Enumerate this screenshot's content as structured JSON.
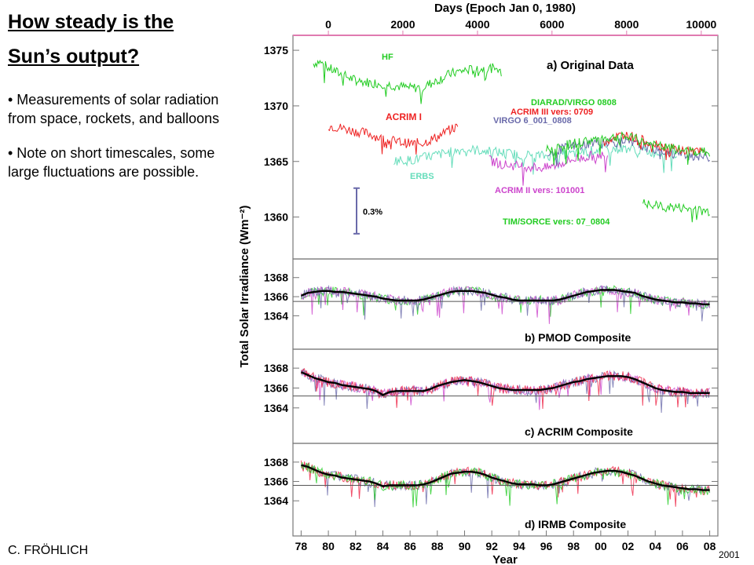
{
  "slide": {
    "title_line1": "How steady is the",
    "title_line2": "Sun’s output?",
    "bullets": [
      "• Measurements of solar radiation from space, rockets, and balloons",
      "• Note on short timescales, some large fluctuations are possible."
    ],
    "author": "C. FRÖHLICH",
    "year_mark": "2001"
  },
  "chart_data": {
    "type": "line",
    "top_axis": {
      "label": "Days (Epoch Jan 0, 1980)",
      "ticks": [
        "0",
        "2000",
        "4000",
        "6000",
        "8000",
        "10000"
      ],
      "tick_years": [
        80,
        85.47,
        90.95,
        96.42,
        101.9,
        107.38
      ]
    },
    "x": {
      "label": "Year",
      "ticks": [
        "78",
        "80",
        "82",
        "84",
        "86",
        "88",
        "90",
        "92",
        "94",
        "96",
        "98",
        "00",
        "02",
        "04",
        "06",
        "08"
      ],
      "range": [
        77.4,
        108.6
      ]
    },
    "ylabel": "Total Solar Irradiance (Wm⁻²)",
    "panels": [
      {
        "name": "a",
        "title": "a) Original Data",
        "ylim": [
          1357.5,
          1375.5
        ],
        "yticks": [
          "1375",
          "1370",
          "1365",
          "1360"
        ],
        "scale_bar_label": "0.3%",
        "instruments": [
          {
            "label": "HF",
            "color": "#22cc22",
            "x": [
              78.9,
              79.3,
              80,
              81,
              82,
              83,
              84,
              85,
              86,
              87,
              88,
              89,
              90,
              91,
              92,
              92.7
            ],
            "y": [
              1373.8,
              1374,
              1373.4,
              1372.8,
              1372.3,
              1372.1,
              1372,
              1371.8,
              1371.6,
              1371.7,
              1372.3,
              1372.9,
              1373.2,
              1373.3,
              1373.4,
              1373.1
            ]
          },
          {
            "label": "ACRIM I",
            "color": "#ee2222",
            "x": [
              80,
              81,
              82,
              83,
              84,
              85,
              86,
              87,
              88,
              89,
              89.5
            ],
            "y": [
              1368.2,
              1368,
              1367.7,
              1367.5,
              1367.0,
              1366.8,
              1366.6,
              1366.7,
              1367.2,
              1367.9,
              1368.1
            ]
          },
          {
            "label": "ERBS",
            "color": "#66ddbb",
            "x": [
              84.8,
              86,
              88,
              90,
              92,
              94,
              96,
              98,
              100,
              102,
              104,
              105.6
            ],
            "y": [
              1365.1,
              1365.1,
              1365.6,
              1366.1,
              1365.9,
              1365.6,
              1365.5,
              1365.7,
              1366.1,
              1366.2,
              1365.8,
              1365.7
            ]
          },
          {
            "label": "ACRIM II vers: 101001",
            "color": "#cc44cc",
            "x": [
              91.8,
              93,
              94,
              96,
              98,
              99.8,
              100.5
            ],
            "y": [
              1365.1,
              1364.7,
              1364.6,
              1364.4,
              1365.2,
              1365.6,
              1365.5
            ]
          },
          {
            "label": "VIRGO 6_001_0808",
            "color": "#6a6aaa",
            "x": [
              96.1,
              98,
              100,
              102,
              104,
              106,
              108
            ],
            "y": [
              1365.8,
              1366.4,
              1366.8,
              1366.7,
              1366.1,
              1365.6,
              1365.4
            ]
          },
          {
            "label": "ACRIM III vers: 0709",
            "color": "#ee2222",
            "x": [
              100.2,
              101,
              102,
              103,
              104,
              105,
              106,
              107.7
            ],
            "y": [
              1366.8,
              1367.2,
              1367.4,
              1366.9,
              1366.6,
              1366.2,
              1366.0,
              1365.8
            ]
          },
          {
            "label": "DIARAD/VIRGO 0808",
            "color": "#22cc22",
            "x": [
              96,
              98,
              100,
              102,
              104,
              106,
              108
            ],
            "y": [
              1366.0,
              1366.6,
              1367.1,
              1367.2,
              1366.4,
              1366.0,
              1365.8
            ]
          },
          {
            "label": "TIM/SORCE vers: 07_0804",
            "color": "#22cc22",
            "x": [
              103.1,
              104,
              105,
              106,
              107,
              108
            ],
            "y": [
              1361.2,
              1361.0,
              1360.9,
              1360.8,
              1360.6,
              1360.5
            ]
          }
        ]
      },
      {
        "name": "b",
        "title": "b) PMOD Composite",
        "ylim": [
          1362.8,
          1368.8
        ],
        "yticks": [
          "1368",
          "1366",
          "1364"
        ],
        "baseline": 1365.5,
        "series": {
          "x": [
            78.0,
            78.5,
            79.0,
            79.5,
            80.0,
            80.5,
            81.0,
            81.5,
            82.0,
            82.5,
            83.0,
            83.5,
            84.0,
            84.5,
            85.0,
            85.5,
            86.0,
            86.5,
            87.0,
            87.5,
            88.0,
            88.5,
            89.0,
            89.5,
            90.0,
            90.5,
            91.0,
            91.5,
            92.0,
            92.5,
            93.0,
            93.5,
            94.0,
            94.5,
            95.0,
            95.5,
            96.0,
            96.5,
            97.0,
            97.5,
            98.0,
            98.5,
            99.0,
            99.5,
            100.0,
            100.5,
            101.0,
            101.5,
            102.0,
            102.5,
            103.0,
            103.5,
            104.0,
            104.5,
            105.0,
            105.5,
            106.0,
            106.5,
            107.0,
            107.5,
            108.0
          ],
          "y": [
            1366.1,
            1366.4,
            1366.5,
            1366.6,
            1366.6,
            1366.5,
            1366.5,
            1366.4,
            1366.3,
            1366.2,
            1366.1,
            1366.0,
            1365.8,
            1365.7,
            1365.6,
            1365.6,
            1365.6,
            1365.6,
            1365.7,
            1365.9,
            1366.1,
            1366.3,
            1366.5,
            1366.6,
            1366.6,
            1366.6,
            1366.5,
            1366.4,
            1366.2,
            1366.0,
            1365.9,
            1365.7,
            1365.6,
            1365.6,
            1365.6,
            1365.6,
            1365.6,
            1365.6,
            1365.7,
            1365.9,
            1366.1,
            1366.3,
            1366.5,
            1366.6,
            1366.7,
            1366.7,
            1366.7,
            1366.6,
            1366.5,
            1366.4,
            1366.1,
            1365.9,
            1365.7,
            1365.6,
            1365.5,
            1365.4,
            1365.4,
            1365.3,
            1365.3,
            1365.2,
            1365.2
          ]
        }
      },
      {
        "name": "c",
        "title": "c) ACRIM Composite",
        "ylim": [
          1362.8,
          1368.8
        ],
        "yticks": [
          "1368",
          "1366",
          "1364"
        ],
        "baseline": 1365.2,
        "series": {
          "x": [
            78.0,
            78.5,
            79.0,
            79.5,
            80.0,
            80.5,
            81.0,
            81.5,
            82.0,
            82.5,
            83.0,
            83.5,
            84.0,
            84.5,
            85.0,
            85.5,
            86.0,
            86.5,
            87.0,
            87.5,
            88.0,
            88.5,
            89.0,
            89.5,
            90.0,
            90.5,
            91.0,
            91.5,
            92.0,
            92.5,
            93.0,
            93.5,
            94.0,
            94.5,
            95.0,
            95.5,
            96.0,
            96.5,
            97.0,
            97.5,
            98.0,
            98.5,
            99.0,
            99.5,
            100.0,
            100.5,
            101.0,
            101.5,
            102.0,
            102.5,
            103.0,
            103.5,
            104.0,
            104.5,
            105.0,
            105.5,
            106.0,
            106.5,
            107.0,
            107.5,
            108.0
          ],
          "y": [
            1367.6,
            1367.3,
            1367.0,
            1366.8,
            1366.6,
            1366.5,
            1366.3,
            1366.2,
            1366.1,
            1366.0,
            1365.9,
            1365.7,
            1365.3,
            1365.6,
            1365.7,
            1365.7,
            1365.7,
            1365.7,
            1365.7,
            1365.9,
            1366.2,
            1366.4,
            1366.6,
            1366.7,
            1366.8,
            1366.7,
            1366.6,
            1366.4,
            1366.2,
            1366.0,
            1365.9,
            1365.8,
            1365.8,
            1365.8,
            1365.8,
            1365.8,
            1365.9,
            1366.0,
            1366.2,
            1366.4,
            1366.6,
            1366.7,
            1366.9,
            1367.0,
            1367.1,
            1367.2,
            1367.2,
            1367.2,
            1367.1,
            1366.9,
            1366.6,
            1366.3,
            1366.0,
            1365.8,
            1365.7,
            1365.6,
            1365.6,
            1365.5,
            1365.5,
            1365.5,
            1365.5
          ]
        }
      },
      {
        "name": "d",
        "title": "d) IRMB Composite",
        "ylim": [
          1362.8,
          1368.8
        ],
        "yticks": [
          "1368",
          "1366",
          "1364"
        ],
        "baseline": 1365.6,
        "series": {
          "x": [
            78.0,
            78.5,
            79.0,
            79.5,
            80.0,
            80.5,
            81.0,
            81.5,
            82.0,
            82.5,
            83.0,
            83.5,
            84.0,
            84.5,
            85.0,
            85.5,
            86.0,
            86.5,
            87.0,
            87.5,
            88.0,
            88.5,
            89.0,
            89.5,
            90.0,
            90.5,
            91.0,
            91.5,
            92.0,
            92.5,
            93.0,
            93.5,
            94.0,
            94.5,
            95.0,
            95.5,
            96.0,
            96.5,
            97.0,
            97.5,
            98.0,
            98.5,
            99.0,
            99.5,
            100.0,
            100.5,
            101.0,
            101.5,
            102.0,
            102.5,
            103.0,
            103.5,
            104.0,
            104.5,
            105.0,
            105.5,
            106.0,
            106.5,
            107.0,
            107.5,
            108.0
          ],
          "y": [
            1367.7,
            1367.5,
            1367.2,
            1366.9,
            1366.7,
            1366.6,
            1366.4,
            1366.3,
            1366.2,
            1366.1,
            1366.0,
            1365.8,
            1365.5,
            1365.6,
            1365.6,
            1365.6,
            1365.6,
            1365.6,
            1365.7,
            1365.9,
            1366.2,
            1366.5,
            1366.8,
            1366.9,
            1367.0,
            1367.0,
            1366.9,
            1366.7,
            1366.4,
            1366.2,
            1366.0,
            1365.8,
            1365.7,
            1365.7,
            1365.7,
            1365.6,
            1365.6,
            1365.7,
            1365.9,
            1366.1,
            1366.3,
            1366.5,
            1366.7,
            1366.9,
            1367.0,
            1367.1,
            1367.1,
            1367.0,
            1366.8,
            1366.6,
            1366.3,
            1366.0,
            1365.8,
            1365.6,
            1365.5,
            1365.4,
            1365.3,
            1365.2,
            1365.2,
            1365.1,
            1365.1
          ]
        }
      }
    ]
  }
}
